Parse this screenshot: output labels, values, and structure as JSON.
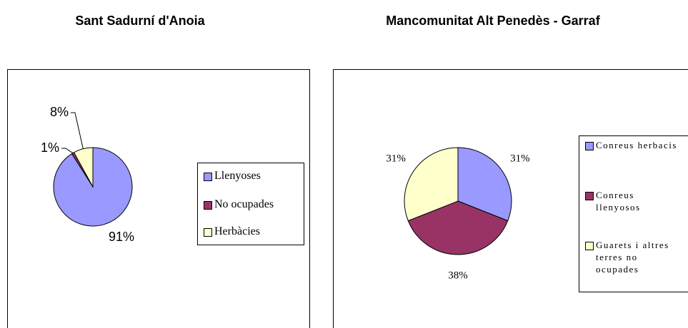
{
  "chart_data": [
    {
      "type": "pie",
      "title": "Sant Sadurní d'Anoia",
      "categories": [
        "Llenyoses",
        "No ocupades",
        "Herbàcies"
      ],
      "values": [
        91,
        1,
        8
      ],
      "value_labels": [
        "91%",
        "1%",
        "8%"
      ],
      "colors": [
        "#9999ff",
        "#993366",
        "#ffffcc"
      ],
      "legend": "right"
    },
    {
      "type": "pie",
      "title": "Mancomunitat Alt Penedès - Garraf",
      "categories": [
        "Conreus herbacis",
        "Conreus llenyosos",
        "Guarets i altres terres no ocupades"
      ],
      "values": [
        31,
        38,
        31
      ],
      "value_labels": [
        "31%",
        "38%",
        "31%"
      ],
      "colors": [
        "#9999ff",
        "#993366",
        "#ffffcc"
      ],
      "legend": "right"
    }
  ]
}
